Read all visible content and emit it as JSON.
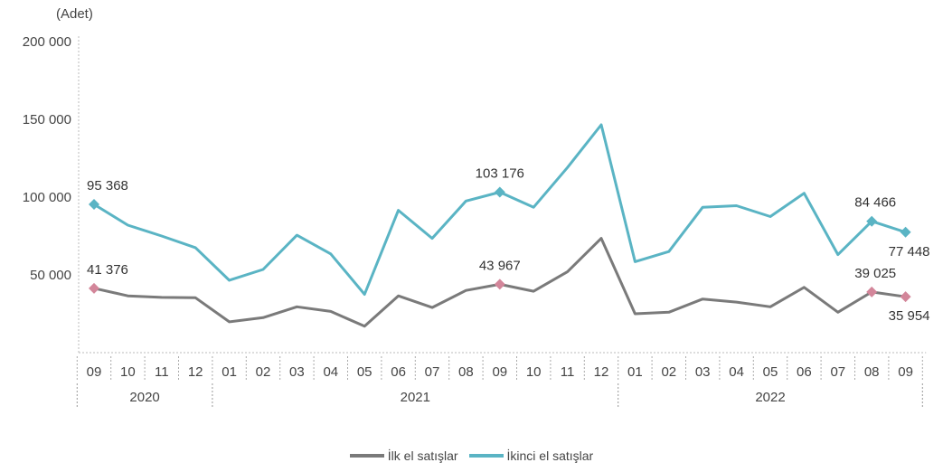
{
  "chart_data": {
    "type": "line",
    "unit": "(Adet)",
    "yticks": [
      "200 000",
      "150 000",
      "100 000",
      "50 000"
    ],
    "ytick_values": [
      200000,
      150000,
      100000,
      50000
    ],
    "ylim": [
      0,
      200000
    ],
    "categories": [
      "09",
      "10",
      "11",
      "12",
      "01",
      "02",
      "03",
      "04",
      "05",
      "06",
      "07",
      "08",
      "09",
      "10",
      "11",
      "12",
      "01",
      "02",
      "03",
      "04",
      "05",
      "06",
      "07",
      "08",
      "09"
    ],
    "years": [
      {
        "label": "2020",
        "start": 0,
        "end": 3
      },
      {
        "label": "2021",
        "start": 4,
        "end": 15
      },
      {
        "label": "2022",
        "start": 16,
        "end": 24
      }
    ],
    "series": [
      {
        "name": "İlk el satışlar",
        "color": "#7a7a7a",
        "values": [
          41376,
          36500,
          35500,
          35300,
          19800,
          22500,
          29500,
          26500,
          17000,
          36500,
          29000,
          40000,
          43967,
          39500,
          52000,
          73500,
          25000,
          26000,
          34500,
          32500,
          29500,
          42000,
          26000,
          39025,
          35954
        ]
      },
      {
        "name": "İkinci el satışlar",
        "color": "#5ab4c4",
        "values": [
          95368,
          82000,
          75000,
          67500,
          46500,
          53500,
          75500,
          63500,
          37500,
          91500,
          73500,
          97500,
          103176,
          93500,
          119000,
          146500,
          58500,
          65000,
          93500,
          94500,
          87500,
          102500,
          63000,
          84466,
          77448
        ]
      }
    ],
    "annotations": [
      {
        "series": 1,
        "index": 0,
        "text": "95 368"
      },
      {
        "series": 1,
        "index": 12,
        "text": "103 176"
      },
      {
        "series": 1,
        "index": 23,
        "text": "84 466"
      },
      {
        "series": 1,
        "index": 24,
        "text": "77 448"
      },
      {
        "series": 0,
        "index": 0,
        "text": "41 376"
      },
      {
        "series": 0,
        "index": 12,
        "text": "43 967"
      },
      {
        "series": 0,
        "index": 23,
        "text": "39 025"
      },
      {
        "series": 0,
        "index": 24,
        "text": "35 954"
      }
    ],
    "legend_position": "bottom"
  }
}
